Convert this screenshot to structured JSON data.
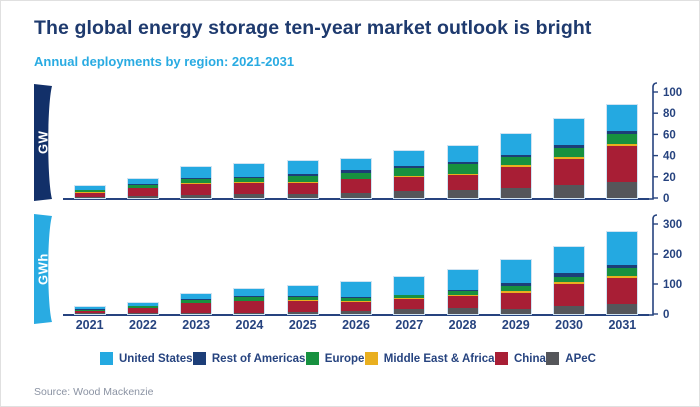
{
  "header": {
    "title": "The global energy storage ten-year market outlook is bright",
    "subtitle": "Annual deployments by region: 2021-2031"
  },
  "footer": {
    "source": "Source: Wood Mackenzie"
  },
  "colors": {
    "title_navy": "#1e3a6e",
    "subtitle_blue": "#29abe2",
    "axis_navy": "#26437f",
    "gw_ribbon": "#123069",
    "gwh_ribbon": "#29abe2",
    "united_states": "#24a9e1",
    "rest_of_americas": "#1c3e78",
    "europe": "#17913f",
    "middle_east_africa": "#e9af1f",
    "china": "#a81e35",
    "apec": "#55565a"
  },
  "legend": [
    {
      "label": "United States",
      "color": "#24a9e1"
    },
    {
      "label": "Rest of Americas",
      "color": "#1c3e78"
    },
    {
      "label": "Europe",
      "color": "#17913f"
    },
    {
      "label": "Middle East & Africa",
      "color": "#e9af1f"
    },
    {
      "label": "China",
      "color": "#a81e35"
    },
    {
      "label": "APeC",
      "color": "#55565a"
    }
  ],
  "chart_data": [
    {
      "type": "bar",
      "stacked": true,
      "unit_label": "GW",
      "title": "Annual deployments by region: 2021-2031 (GW)",
      "xlabel": "",
      "ylabel": "GW",
      "categories": [
        "2021",
        "2022",
        "2023",
        "2024",
        "2025",
        "2026",
        "2027",
        "2028",
        "2029",
        "2030",
        "2031"
      ],
      "ylim": [
        0,
        100
      ],
      "yticks": [
        0,
        20,
        40,
        60,
        80,
        100
      ],
      "grid": false,
      "legend_position": "bottom",
      "series": [
        {
          "key": "apec",
          "name": "APeC",
          "color": "#55565a",
          "values": [
            1,
            2,
            3,
            4,
            4,
            5,
            7,
            8,
            9.5,
            12,
            15
          ]
        },
        {
          "key": "china",
          "name": "China",
          "color": "#a81e35",
          "values": [
            4,
            7,
            10,
            10,
            10,
            12.5,
            12.5,
            14,
            20,
            25,
            34
          ]
        },
        {
          "key": "middle-east-africa",
          "name": "Middle East & Africa",
          "color": "#e9af1f",
          "values": [
            0.3,
            0.5,
            1,
            1,
            1,
            0.5,
            1,
            1,
            1.5,
            2,
            2
          ]
        },
        {
          "key": "europe",
          "name": "Europe",
          "color": "#17913f",
          "values": [
            2,
            3,
            3.5,
            4,
            6,
            6,
            8,
            9.5,
            7.5,
            8,
            9
          ]
        },
        {
          "key": "rest-of-americas",
          "name": "Rest of Americas",
          "color": "#1c3e78",
          "values": [
            0.7,
            1,
            1,
            1,
            2,
            2.5,
            2,
            1.5,
            2.5,
            3,
            3
          ]
        },
        {
          "key": "united-states",
          "name": "United States",
          "color": "#24a9e1",
          "values": [
            3,
            4.5,
            10.5,
            12,
            11.5,
            10.5,
            13.5,
            15.5,
            19,
            24.5,
            25
          ]
        }
      ]
    },
    {
      "type": "bar",
      "stacked": true,
      "unit_label": "GWh",
      "title": "Annual deployments by region: 2021-2031 (GWh)",
      "xlabel": "",
      "ylabel": "GWh",
      "categories": [
        "2021",
        "2022",
        "2023",
        "2024",
        "2025",
        "2026",
        "2027",
        "2028",
        "2029",
        "2030",
        "2031"
      ],
      "ylim": [
        0,
        300
      ],
      "yticks": [
        0,
        100,
        200,
        300
      ],
      "grid": false,
      "legend_position": "bottom",
      "series": [
        {
          "key": "apec",
          "name": "APeC",
          "color": "#55565a",
          "values": [
            2,
            3,
            4,
            5,
            6,
            11,
            17,
            20,
            16,
            27,
            32
          ]
        },
        {
          "key": "china",
          "name": "China",
          "color": "#a81e35",
          "values": [
            9,
            17,
            33,
            38,
            39,
            30,
            33,
            40,
            55,
            72,
            87
          ]
        },
        {
          "key": "middle-east-africa",
          "name": "Middle East & Africa",
          "color": "#e9af1f",
          "values": [
            0.5,
            0.5,
            1,
            2,
            2,
            3,
            2,
            2,
            6,
            8,
            8
          ]
        },
        {
          "key": "europe",
          "name": "Europe",
          "color": "#17913f",
          "values": [
            3,
            5,
            8,
            12,
            11,
            10,
            10,
            16,
            16,
            17,
            25
          ]
        },
        {
          "key": "rest-of-americas",
          "name": "Rest of Americas",
          "color": "#1c3e78",
          "values": [
            1.5,
            2,
            3,
            3,
            3,
            4,
            3,
            2,
            11,
            12,
            11
          ]
        },
        {
          "key": "united-states",
          "name": "United States",
          "color": "#24a9e1",
          "values": [
            7,
            9.5,
            18,
            25,
            34,
            48,
            58,
            66,
            76,
            87,
            109
          ]
        }
      ]
    }
  ]
}
